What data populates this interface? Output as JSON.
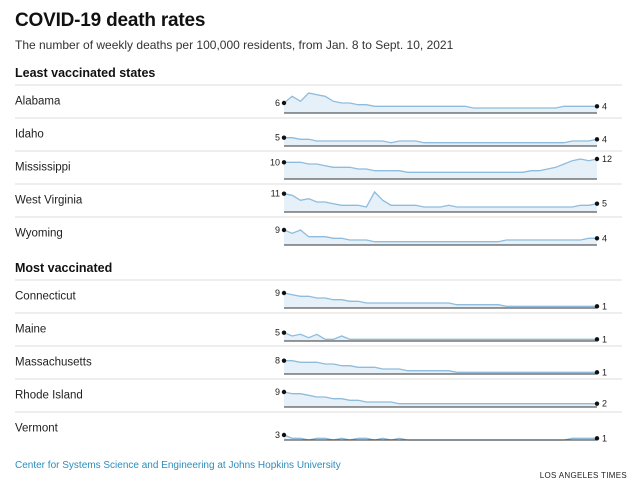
{
  "header": {
    "title": "COVID-19 death rates",
    "subtitle": "The number of weekly deaths per 100,000 residents, from Jan. 8 to Sept. 10, 2021"
  },
  "sections": [
    {
      "label": "Least vaccinated states"
    },
    {
      "label": "Most vaccinated"
    }
  ],
  "footer": {
    "source": "Center for Systems Science and Engineering at Johns Hopkins University",
    "credit": "LOS ANGELES TIMES"
  },
  "colors": {
    "line": "#8fbcdc",
    "fill": "#e6f0f8",
    "baseline": "#333333",
    "divider": "#dddddd",
    "dot": "#111111"
  },
  "chart_data": {
    "type": "area",
    "x_start": "Jan. 8, 2021",
    "x_end": "Sept. 10, 2021",
    "series": [
      {
        "name": "Alabama",
        "group": 0,
        "start_label": "6",
        "end_label": "4",
        "values": [
          6,
          10,
          7,
          12,
          11,
          10,
          7,
          6,
          6,
          5,
          5,
          4,
          4,
          4,
          4,
          4,
          4,
          4,
          4,
          4,
          4,
          4,
          4,
          3,
          3,
          3,
          3,
          3,
          3,
          3,
          3,
          3,
          3,
          3,
          4,
          4,
          4,
          4,
          4
        ]
      },
      {
        "name": "Idaho",
        "group": 0,
        "start_label": "5",
        "end_label": "4",
        "values": [
          5,
          5,
          4,
          4,
          3,
          3,
          3,
          3,
          3,
          3,
          3,
          3,
          3,
          2,
          3,
          3,
          3,
          2,
          2,
          2,
          2,
          2,
          2,
          2,
          2,
          2,
          2,
          2,
          2,
          2,
          2,
          2,
          2,
          2,
          2,
          3,
          3,
          3,
          4
        ]
      },
      {
        "name": "Mississippi",
        "group": 0,
        "start_label": "10",
        "end_label": "12",
        "values": [
          10,
          10,
          10,
          9,
          9,
          8,
          7,
          7,
          7,
          6,
          6,
          5,
          5,
          5,
          5,
          4,
          4,
          4,
          4,
          4,
          4,
          4,
          4,
          4,
          4,
          4,
          4,
          4,
          4,
          4,
          5,
          5,
          6,
          7,
          9,
          11,
          12,
          11,
          12
        ]
      },
      {
        "name": "West Virginia",
        "group": 0,
        "start_label": "11",
        "end_label": "5",
        "values": [
          11,
          10,
          7,
          8,
          6,
          6,
          5,
          4,
          4,
          4,
          3,
          12,
          7,
          4,
          4,
          4,
          4,
          3,
          3,
          3,
          4,
          3,
          3,
          3,
          3,
          3,
          3,
          3,
          3,
          3,
          3,
          3,
          3,
          3,
          3,
          3,
          4,
          4,
          5
        ]
      },
      {
        "name": "Wyoming",
        "group": 0,
        "start_label": "9",
        "end_label": "4",
        "values": [
          9,
          7,
          9,
          5,
          5,
          5,
          4,
          4,
          3,
          3,
          3,
          2,
          2,
          2,
          2,
          2,
          2,
          2,
          2,
          2,
          2,
          2,
          2,
          2,
          2,
          2,
          2,
          3,
          3,
          3,
          3,
          3,
          3,
          3,
          3,
          3,
          3,
          4,
          4
        ]
      },
      {
        "name": "Connecticut",
        "group": 1,
        "start_label": "9",
        "end_label": "1",
        "values": [
          9,
          8,
          7,
          7,
          6,
          6,
          5,
          5,
          4,
          4,
          3,
          3,
          3,
          3,
          3,
          3,
          3,
          3,
          3,
          3,
          3,
          2,
          2,
          2,
          2,
          2,
          2,
          1,
          1,
          1,
          1,
          1,
          1,
          1,
          1,
          1,
          1,
          1,
          1
        ]
      },
      {
        "name": "Maine",
        "group": 1,
        "start_label": "5",
        "end_label": "1",
        "values": [
          5,
          3,
          4,
          2,
          4,
          1,
          1,
          3,
          1,
          1,
          1,
          1,
          1,
          1,
          1,
          1,
          1,
          1,
          1,
          1,
          1,
          1,
          1,
          1,
          1,
          1,
          1,
          1,
          1,
          1,
          1,
          1,
          1,
          1,
          1,
          1,
          1,
          1,
          1
        ]
      },
      {
        "name": "Massachusetts",
        "group": 1,
        "start_label": "8",
        "end_label": "1",
        "values": [
          8,
          8,
          7,
          7,
          7,
          6,
          6,
          5,
          5,
          4,
          4,
          4,
          3,
          3,
          3,
          2,
          2,
          2,
          2,
          2,
          2,
          1,
          1,
          1,
          1,
          1,
          1,
          1,
          1,
          1,
          1,
          1,
          1,
          1,
          1,
          1,
          1,
          1,
          1
        ]
      },
      {
        "name": "Rhode Island",
        "group": 1,
        "start_label": "9",
        "end_label": "2",
        "values": [
          9,
          8,
          8,
          7,
          6,
          6,
          5,
          5,
          4,
          4,
          3,
          3,
          3,
          3,
          2,
          2,
          2,
          2,
          2,
          2,
          2,
          2,
          2,
          2,
          2,
          2,
          2,
          2,
          2,
          2,
          2,
          2,
          2,
          2,
          2,
          2,
          2,
          2,
          2
        ]
      },
      {
        "name": "Vermont",
        "group": 1,
        "start_label": "3",
        "end_label": "1",
        "values": [
          3,
          1,
          1,
          0,
          1,
          1,
          0,
          1,
          0,
          1,
          1,
          0,
          1,
          0,
          1,
          0,
          0,
          0,
          0,
          0,
          0,
          0,
          0,
          0,
          0,
          0,
          0,
          0,
          0,
          0,
          0,
          0,
          0,
          0,
          0,
          1,
          1,
          1,
          1
        ]
      }
    ]
  }
}
